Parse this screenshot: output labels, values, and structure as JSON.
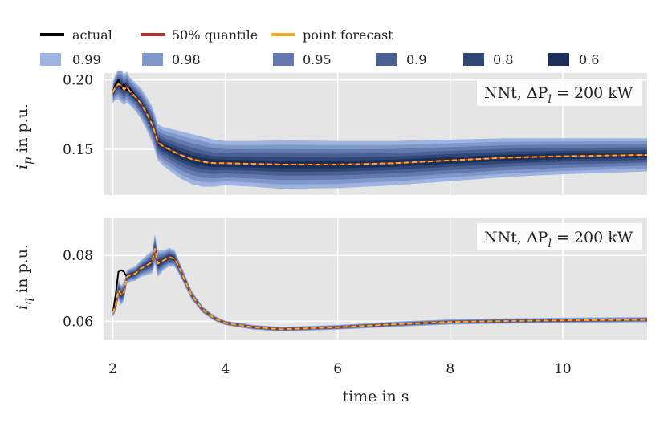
{
  "chart_data": {
    "type": "line",
    "xlabel": "time in s",
    "xlim": [
      1.85,
      11.5
    ],
    "xticks": [
      2,
      4,
      6,
      8,
      10
    ],
    "x": [
      2.0,
      2.05,
      2.1,
      2.15,
      2.2,
      2.25,
      2.3,
      2.4,
      2.5,
      2.6,
      2.7,
      2.75,
      2.8,
      2.9,
      3.0,
      3.1,
      3.2,
      3.4,
      3.6,
      3.8,
      4.0,
      4.5,
      5.0,
      6.0,
      7.0,
      8.0,
      9.0,
      10.0,
      11.5
    ],
    "legend": {
      "items": [
        {
          "label": "actual",
          "color": "#000000",
          "kind": "line"
        },
        {
          "label": "50% quantile",
          "color": "#b03030",
          "kind": "line"
        },
        {
          "label": "point forecast",
          "color": "#f0b020",
          "kind": "line"
        }
      ],
      "bands": [
        {
          "label": "0.99",
          "color": "#9fb3e0"
        },
        {
          "label": "0.98",
          "color": "#7e98cc"
        },
        {
          "label": "0.95",
          "color": "#6579b0"
        },
        {
          "label": "0.9",
          "color": "#4a5f92"
        },
        {
          "label": "0.8",
          "color": "#2f4676"
        },
        {
          "label": "0.6",
          "color": "#1a2f5c"
        }
      ]
    },
    "panels": [
      {
        "ylabel_var": "i",
        "ylabel_sub": "p",
        "ylabel_rest": " in p.u.",
        "ylim": [
          0.117,
          0.205
        ],
        "yticks": [
          0.15,
          0.2
        ],
        "ytick_labels": [
          "0.15",
          "0.20"
        ],
        "annotation_prefix": "NNt, ΔP",
        "annotation_sub": "l",
        "annotation_suffix": " = 200 kW",
        "center": [
          0.191,
          0.195,
          0.197,
          0.196,
          0.193,
          0.195,
          0.192,
          0.188,
          0.183,
          0.176,
          0.168,
          0.162,
          0.155,
          0.152,
          0.15,
          0.148,
          0.146,
          0.143,
          0.141,
          0.14,
          0.14,
          0.1395,
          0.139,
          0.139,
          0.14,
          0.142,
          0.144,
          0.145,
          0.146
        ],
        "band_spread": [
          0.008,
          0.009,
          0.011,
          0.012,
          0.011,
          0.011,
          0.01,
          0.01,
          0.011,
          0.012,
          0.013,
          0.013,
          0.013,
          0.014,
          0.015,
          0.016,
          0.017,
          0.018,
          0.018,
          0.017,
          0.016,
          0.0165,
          0.0175,
          0.017,
          0.016,
          0.015,
          0.014,
          0.013,
          0.012
        ],
        "actual_dev": [
          0,
          0.002,
          0.003,
          -0.002,
          0.004,
          -0.003,
          0.002,
          0,
          0,
          0,
          0,
          0,
          0,
          0,
          0,
          0,
          0,
          0,
          0,
          0,
          0,
          0,
          0,
          0,
          0,
          0,
          0,
          0,
          0
        ]
      },
      {
        "ylabel_var": "i",
        "ylabel_sub": "q",
        "ylabel_rest": " in p.u.",
        "ylim": [
          0.0545,
          0.0915
        ],
        "yticks": [
          0.06,
          0.08
        ],
        "ytick_labels": [
          "0.06",
          "0.08"
        ],
        "annotation_prefix": "NNt, ΔP",
        "annotation_sub": "l",
        "annotation_suffix": " = 200 kW",
        "center": [
          0.0625,
          0.065,
          0.0695,
          0.068,
          0.069,
          0.0735,
          0.074,
          0.0745,
          0.076,
          0.077,
          0.078,
          0.082,
          0.0775,
          0.0785,
          0.0795,
          0.079,
          0.0755,
          0.068,
          0.0635,
          0.061,
          0.0595,
          0.0582,
          0.0576,
          0.0582,
          0.0591,
          0.0598,
          0.0601,
          0.0603,
          0.0605
        ],
        "band_spread": [
          0.0012,
          0.002,
          0.003,
          0.003,
          0.0028,
          0.002,
          0.002,
          0.0022,
          0.0025,
          0.003,
          0.0035,
          0.0045,
          0.004,
          0.003,
          0.0028,
          0.0025,
          0.002,
          0.0014,
          0.001,
          0.0008,
          0.0007,
          0.0007,
          0.0007,
          0.0007,
          0.0008,
          0.0008,
          0.0008,
          0.0008,
          0.0008
        ],
        "actual_dev": [
          0.0,
          0.003,
          0.0055,
          0.0075,
          0.006,
          0.0,
          0.0,
          0,
          0,
          0,
          0,
          0,
          0,
          0,
          0,
          0,
          0,
          0,
          0,
          0,
          0,
          0,
          0,
          0,
          0,
          0,
          0,
          0,
          0
        ]
      }
    ]
  }
}
